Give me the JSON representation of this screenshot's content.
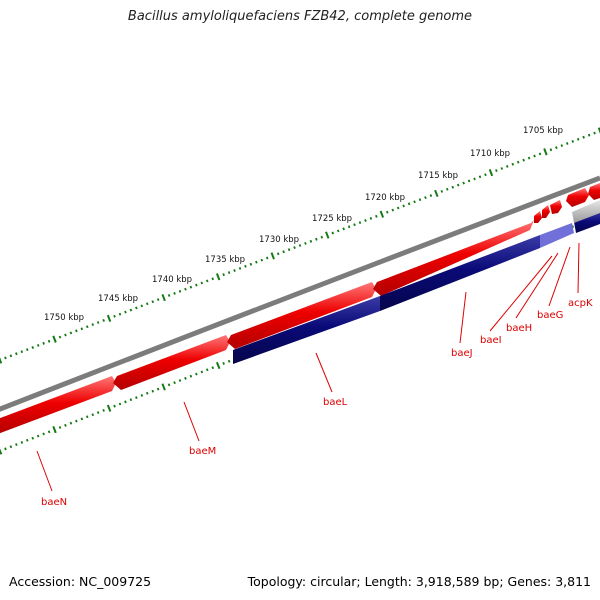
{
  "title": "Bacillus amyloliquefaciens FZB42, complete genome",
  "footer": {
    "accession": "Accession: NC_009725",
    "topology": "Topology: circular; Length: 3,918,589 bp; Genes: 3,811"
  },
  "colors": {
    "backbone": "#7c7c7c",
    "forward_gene": "#e60000",
    "reverse_gene": "#0a0a78",
    "rna_gene": "#b4b4b4",
    "tick": "#157a15",
    "gene_label": "#dd0000"
  },
  "scale_labels": [
    "1705 kbp",
    "1710 kbp",
    "1715 kbp",
    "1720 kbp",
    "1725 kbp",
    "1730 kbp",
    "1735 kbp",
    "1740 kbp",
    "1745 kbp",
    "1750 kbp"
  ],
  "genes": [
    "baeN",
    "baeM",
    "baeL",
    "baeJ",
    "baeI",
    "baeH",
    "baeG",
    "acpK"
  ]
}
